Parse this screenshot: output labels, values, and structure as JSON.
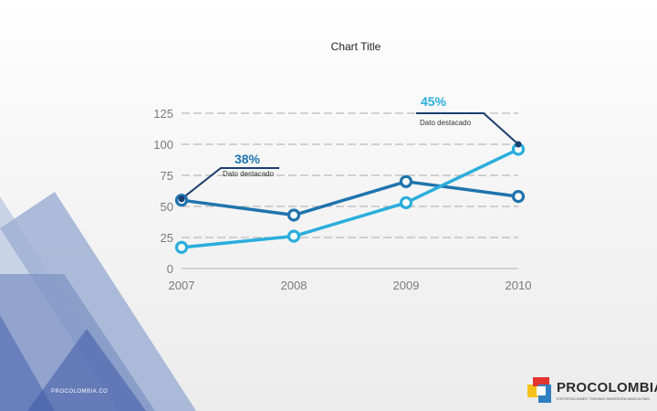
{
  "chart_data": {
    "type": "line",
    "title": "Chart Title",
    "x": [
      "2007",
      "2008",
      "2009",
      "2010"
    ],
    "ylim": [
      0,
      125
    ],
    "yticks": [
      0,
      25,
      50,
      75,
      100,
      125
    ],
    "grid": true,
    "series": [
      {
        "values": [
          55,
          43,
          70,
          58
        ],
        "color": "#1f74ad"
      },
      {
        "values": [
          17,
          26,
          53,
          96
        ],
        "color": "#2aaedc"
      },
      {
        "values": [
          56,
          null,
          null,
          100
        ],
        "color": "#1b3e6d"
      }
    ],
    "annotations": [
      {
        "value": "38%",
        "label": "Dato destacado",
        "color": "#1f74ad"
      },
      {
        "value": "45%",
        "label": "Dato destacado",
        "color": "#2aaedc"
      }
    ]
  },
  "footer": {
    "left_text": "PROCOLOMBIA.CO"
  },
  "logo": {
    "name": "PROCOLOMBIA",
    "tagline": "EXPORTACIONES TURISMO INVERSIÓN MARCA PAÍS",
    "colors": [
      "#f4c21b",
      "#e3342f",
      "#2f7fc1"
    ]
  }
}
